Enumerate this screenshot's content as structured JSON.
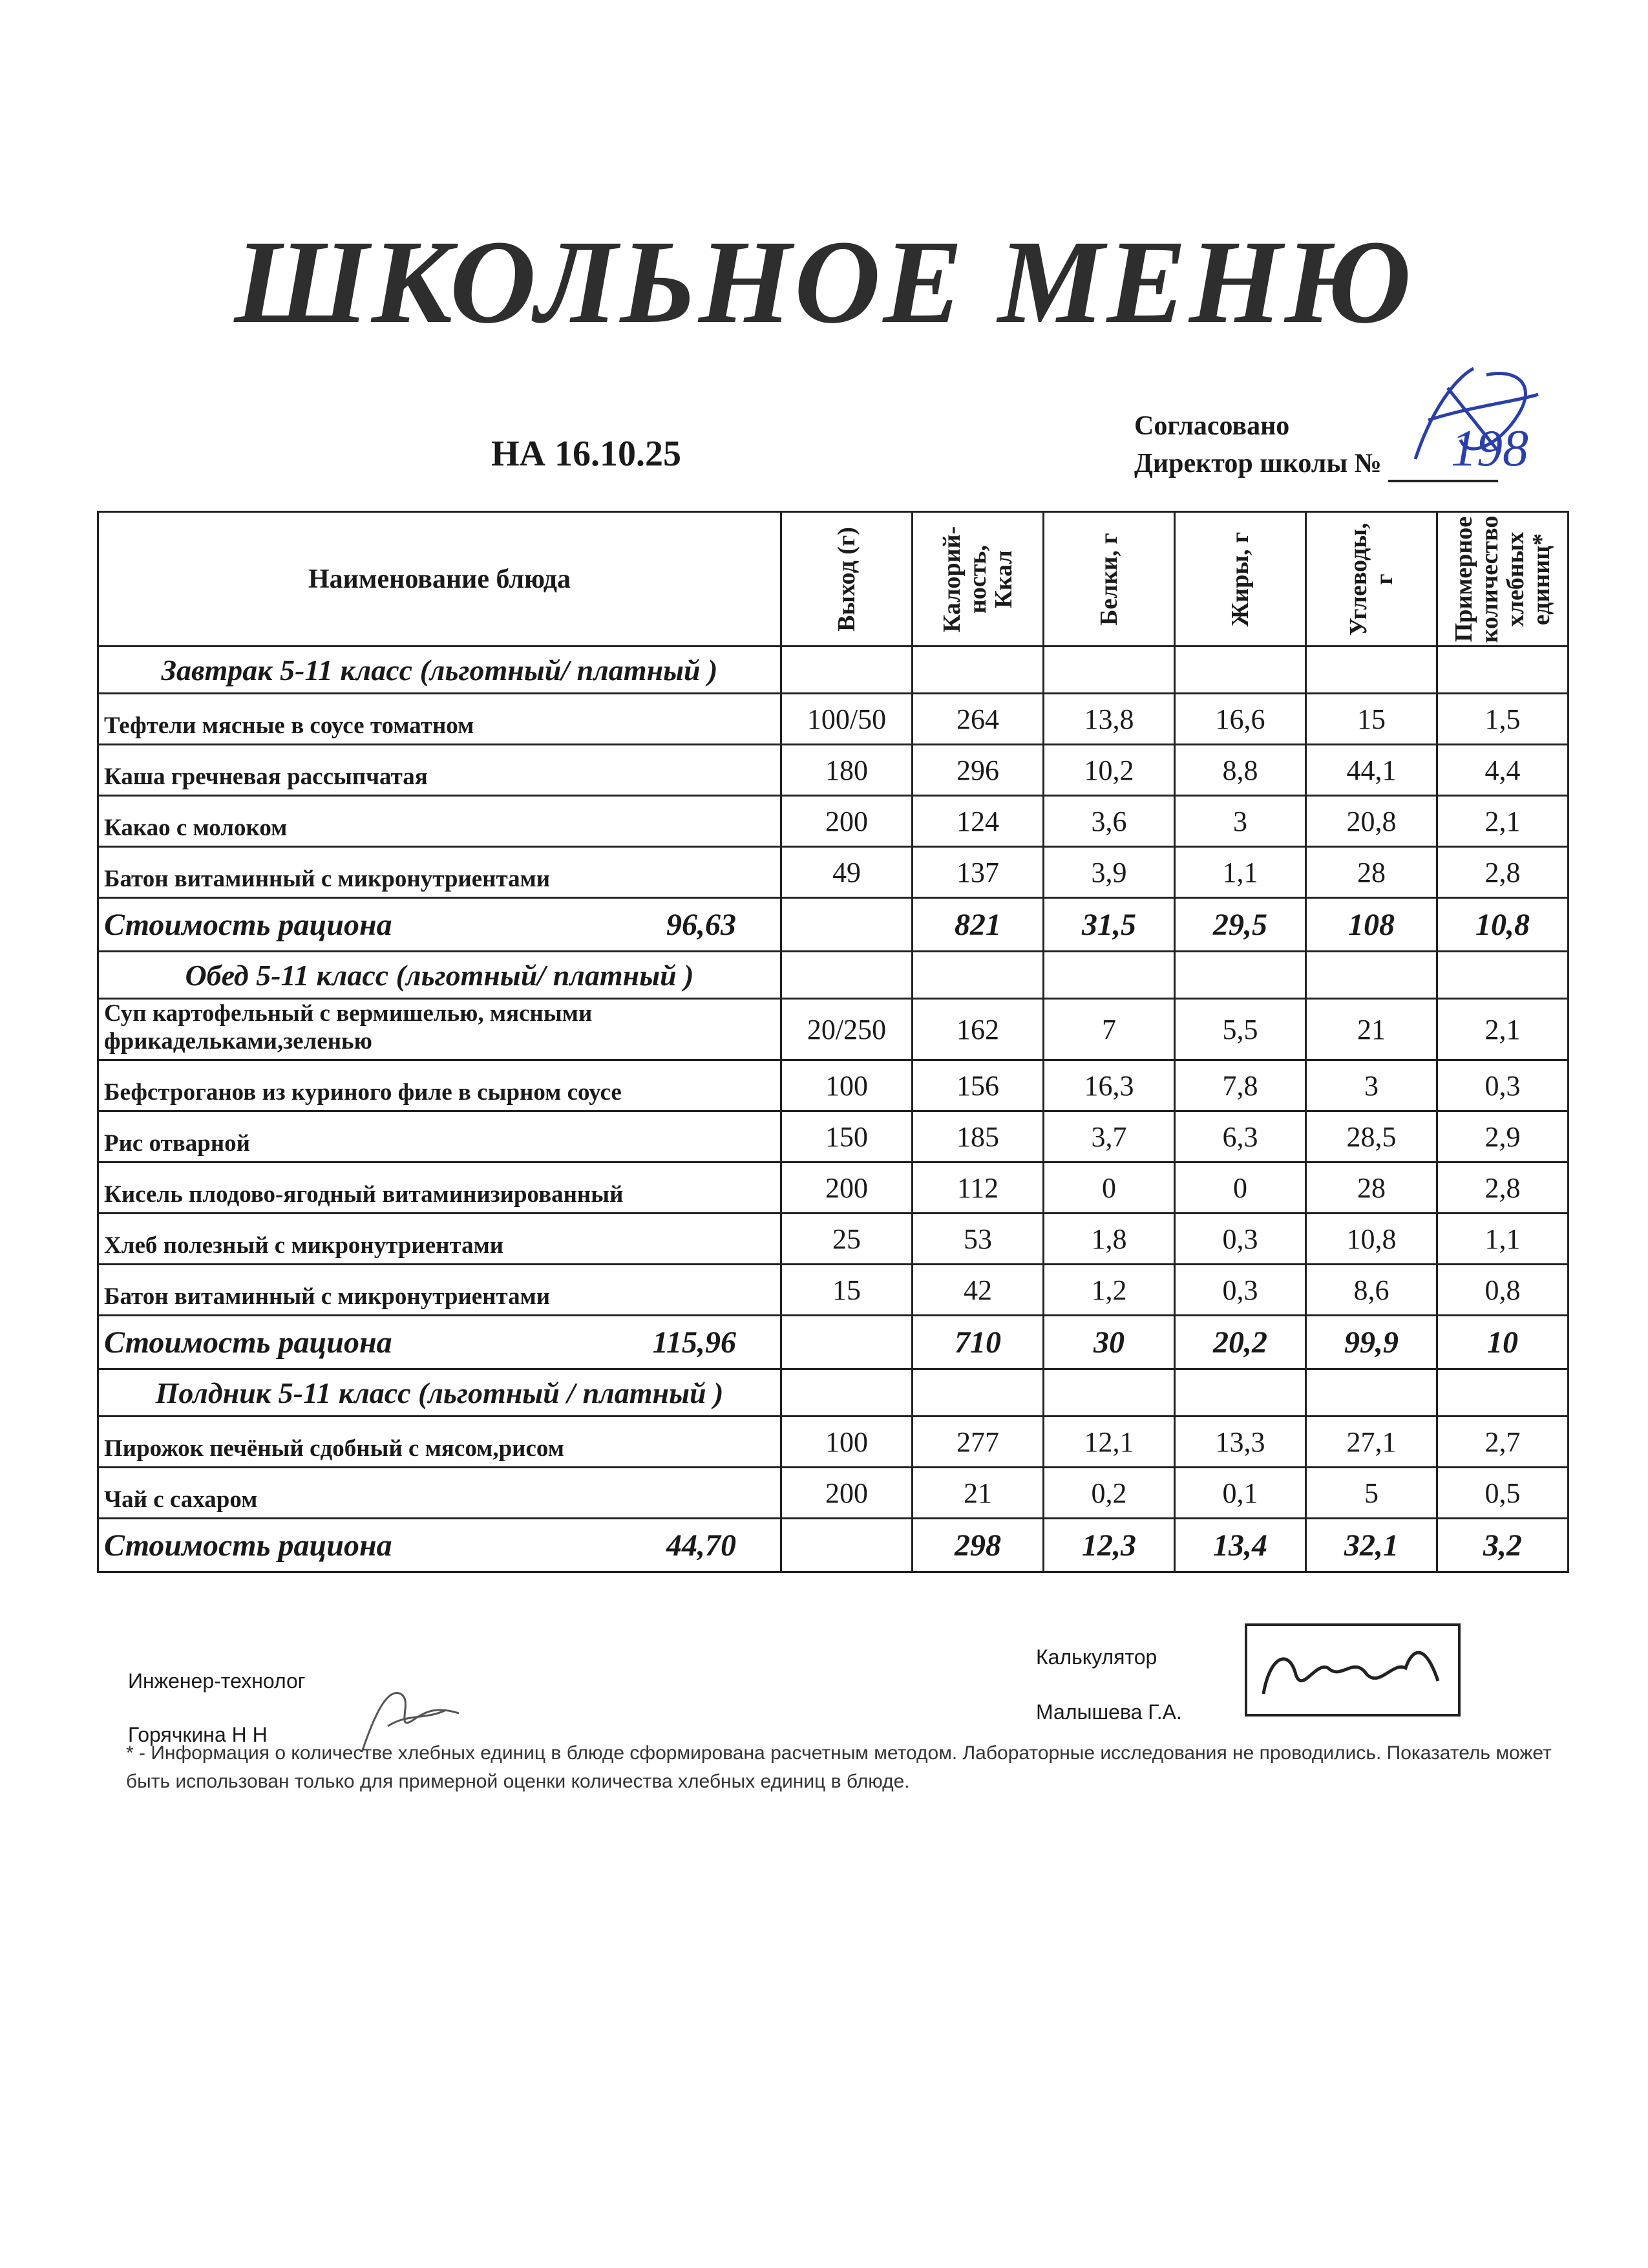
{
  "title": "ШКОЛЬНОЕ МЕНЮ",
  "date": "НА 16.10.25",
  "approval": {
    "line1": "Согласовано",
    "line2": "Директор  школы №",
    "school_number_handwritten": "198"
  },
  "columns": [
    "Наименование блюда",
    "Выход (г)",
    "Калорий-ность, Ккал",
    "Белки, г",
    "Жиры, г",
    "Углеводы, г",
    "Примерное количество хлебных единиц*"
  ],
  "sections": [
    {
      "title": "Завтрак 5-11 класс (льготный/ платный )",
      "rows": [
        [
          "Тефтели мясные в соусе томатном",
          "100/50",
          "264",
          "13,8",
          "16,6",
          "15",
          "1,5"
        ],
        [
          "Каша гречневая рассыпчатая",
          "180",
          "296",
          "10,2",
          "8,8",
          "44,1",
          "4,4"
        ],
        [
          "Какао с молоком",
          "200",
          "124",
          "3,6",
          "3",
          "20,8",
          "2,1"
        ],
        [
          "Батон витаминный с микронутриентами",
          "49",
          "137",
          "3,9",
          "1,1",
          "28",
          "2,8"
        ]
      ],
      "total": {
        "label": "Стоимость рациона",
        "cost": "96,63",
        "values": [
          "821",
          "31,5",
          "29,5",
          "108",
          "10,8"
        ]
      }
    },
    {
      "title": "Обед 5-11 класс (льготный/ платный )",
      "rows": [
        [
          "Суп картофельный с вермишелью, мясными фрикадельками,зеленью",
          "20/250",
          "162",
          "7",
          "5,5",
          "21",
          "2,1"
        ],
        [
          "Бефстроганов из куриного филе в сырном соусе",
          "100",
          "156",
          "16,3",
          "7,8",
          "3",
          "0,3"
        ],
        [
          "Рис отварной",
          "150",
          "185",
          "3,7",
          "6,3",
          "28,5",
          "2,9"
        ],
        [
          "Кисель плодово-ягодный витаминизированный",
          "200",
          "112",
          "0",
          "0",
          "28",
          "2,8"
        ],
        [
          "Хлеб полезный с микронутриентами",
          "25",
          "53",
          "1,8",
          "0,3",
          "10,8",
          "1,1"
        ],
        [
          "Батон витаминный с микронутриентами",
          "15",
          "42",
          "1,2",
          "0,3",
          "8,6",
          "0,8"
        ]
      ],
      "total": {
        "label": "Стоимость рациона",
        "cost": "115,96",
        "values": [
          "710",
          "30",
          "20,2",
          "99,9",
          "10"
        ]
      }
    },
    {
      "title": "Полдник 5-11 класс  (льготный / платный )",
      "rows": [
        [
          "Пирожок печёный сдобный с мясом,рисом",
          "100",
          "277",
          "12,1",
          "13,3",
          "27,1",
          "2,7"
        ],
        [
          "Чай с сахаром",
          "200",
          "21",
          "0,2",
          "0,1",
          "5",
          "0,5"
        ]
      ],
      "total": {
        "label": "Стоимость рациона",
        "cost": "44,70",
        "values": [
          "298",
          "12,3",
          "13,4",
          "32,1",
          "3,2"
        ]
      }
    }
  ],
  "signatures": {
    "engineer_title": "Инженер-технолог",
    "engineer_name": "Горячкина Н Н",
    "calc_title": "Калькулятор",
    "calc_name": "Малышева Г.А."
  },
  "footnote": "* - Информация о количестве хлебных единиц в блюде сформирована расчетным методом. Лабораторные исследования не проводились. Показатель может быть использован только для примерной оценки количества хлебных единиц в блюде."
}
